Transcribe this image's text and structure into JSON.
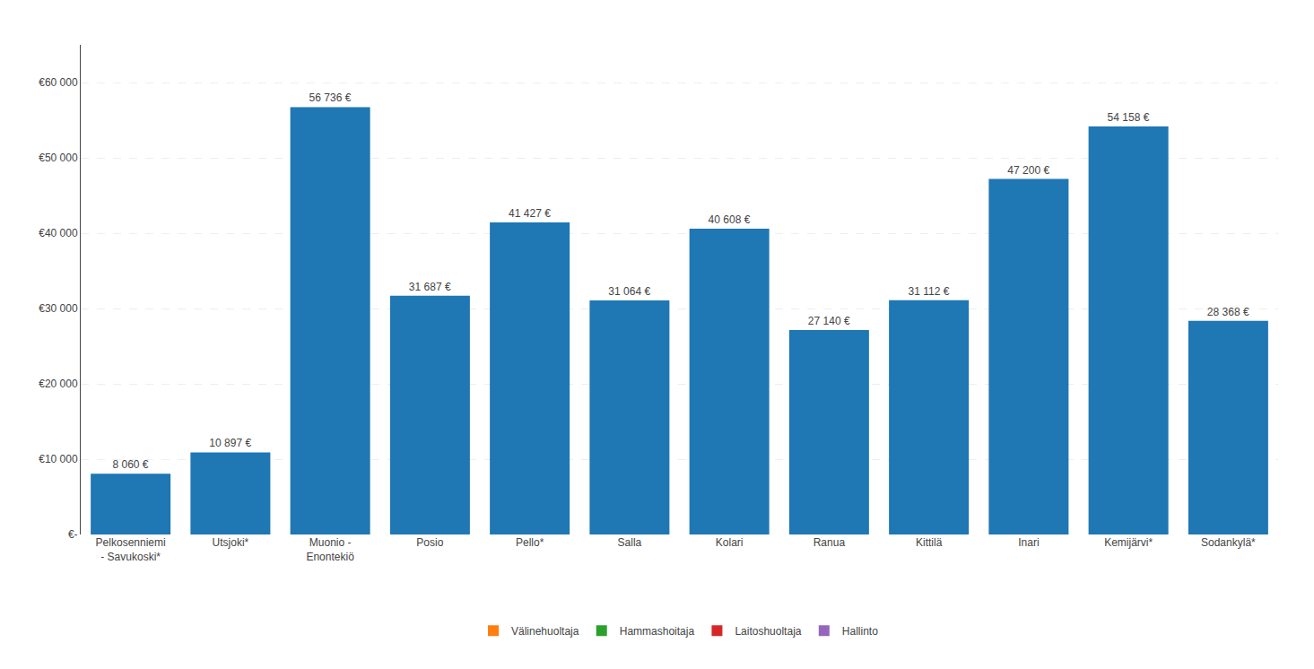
{
  "chart_data": {
    "type": "bar",
    "categories": [
      "Pelkosenniemi\n- Savukoski*",
      "Utsjoki*",
      "Muonio -\nEnontekiö",
      "Posio",
      "Pello*",
      "Salla",
      "Kolari",
      "Ranua",
      "Kittilä",
      "Inari",
      "Kemijärvi*",
      "Sodankylä*"
    ],
    "values": [
      8060,
      10897,
      56736,
      31687,
      41427,
      31064,
      40608,
      27140,
      31112,
      47200,
      54158,
      28368
    ],
    "value_labels": [
      "8 060 €",
      "10 897 €",
      "56 736 €",
      "31 687 €",
      "41 427 €",
      "31 064 €",
      "40 608 €",
      "27 140 €",
      "31 112 €",
      "47 200 €",
      "54 158 €",
      "28 368 €"
    ],
    "data_labels": true,
    "ylim": [
      0,
      65000
    ],
    "yticks": [
      {
        "value": 0,
        "label": "€-"
      },
      {
        "value": 10000,
        "label": "€10 000"
      },
      {
        "value": 20000,
        "label": "€20 000"
      },
      {
        "value": 30000,
        "label": "€30 000"
      },
      {
        "value": 40000,
        "label": "€40 000"
      },
      {
        "value": 50000,
        "label": "€50 000"
      },
      {
        "value": 60000,
        "label": "€60 000"
      }
    ],
    "grid": true,
    "legend": "bottom",
    "legend_entries": [
      {
        "name": "Välinehuoltaja"
      },
      {
        "name": "Hammashoitaja"
      },
      {
        "name": "Laitoshuoltaja"
      },
      {
        "name": "Hallinto"
      }
    ]
  }
}
